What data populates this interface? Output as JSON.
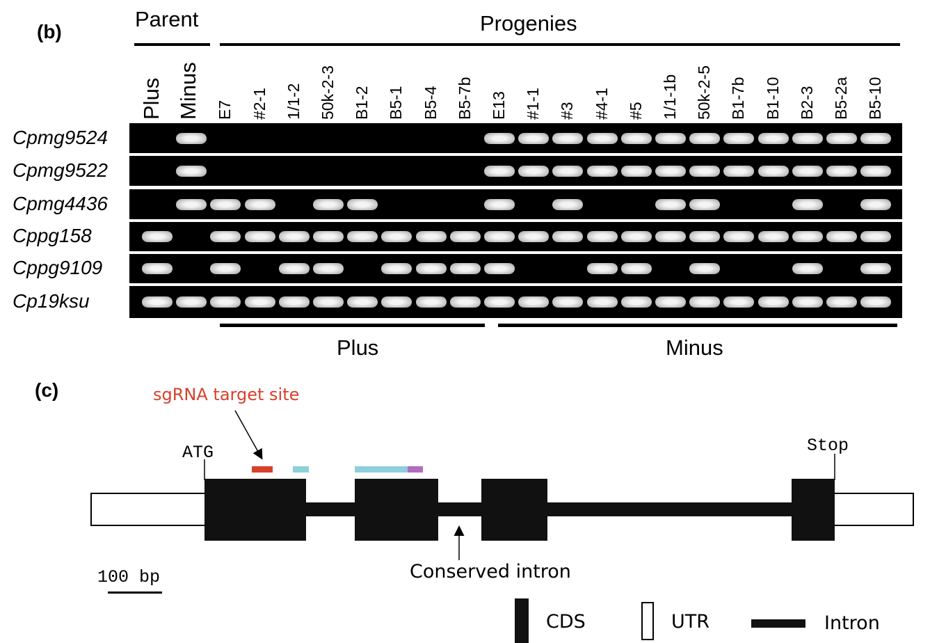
{
  "panel_b": {
    "label": "(b)",
    "parent_header": "Parent",
    "progenies_header": "Progenies",
    "lanes": [
      "Plus",
      "Minus",
      "E7",
      "#2-1",
      "1/1-2",
      "50k-2-3",
      "B1-2",
      "B5-1",
      "B5-4",
      "B5-7b",
      "E13",
      "#1-1",
      "#3",
      "#4-1",
      "#5",
      "1/1-1b",
      "50k-2-5",
      "B1-7b",
      "B1-10",
      "B2-3",
      "B5-2a",
      "B5-10"
    ],
    "rows": [
      {
        "gene": "Cpmg9524",
        "bands": [
          0,
          1,
          0,
          0,
          0,
          0,
          0,
          0,
          0,
          0,
          1,
          1,
          1,
          1,
          1,
          1,
          1,
          1,
          1,
          1,
          1,
          1
        ]
      },
      {
        "gene": "Cpmg9522",
        "bands": [
          0,
          1,
          0,
          0,
          0,
          0,
          0,
          0,
          0,
          0,
          1,
          1,
          1,
          1,
          1,
          1,
          1,
          1,
          1,
          1,
          1,
          1
        ]
      },
      {
        "gene": "Cpmg4436",
        "bands": [
          0,
          1,
          1,
          1,
          0,
          1,
          1,
          0,
          0,
          0,
          1,
          0,
          1,
          0,
          0,
          1,
          1,
          0,
          0,
          1,
          0,
          1
        ]
      },
      {
        "gene": "Cppg158",
        "bands": [
          1,
          0,
          1,
          1,
          1,
          1,
          1,
          1,
          1,
          1,
          1,
          1,
          1,
          1,
          1,
          1,
          1,
          1,
          1,
          1,
          1,
          1
        ]
      },
      {
        "gene": "Cppg9109",
        "bands": [
          1,
          0,
          1,
          0,
          1,
          1,
          0,
          1,
          1,
          1,
          1,
          0,
          0,
          1,
          1,
          0,
          1,
          0,
          0,
          1,
          0,
          1
        ]
      },
      {
        "gene": "Cp19ksu",
        "bands": [
          1,
          1,
          1,
          1,
          1,
          1,
          1,
          1,
          1,
          1,
          1,
          1,
          1,
          1,
          1,
          1,
          1,
          1,
          1,
          1,
          1,
          1
        ]
      }
    ],
    "group_plus": "Plus",
    "group_minus": "Minus"
  },
  "panel_c": {
    "label": "(c)",
    "sgrna_label": "sgRNA target site",
    "sgrna_color": "#d9402b",
    "domain_colors": [
      "#8ecfdc",
      "#b26cbf"
    ],
    "start_label": "ATG",
    "stop_label": "Stop",
    "conserved_label": "Conserved intron",
    "scale_label": "100 bp",
    "legend": {
      "cds": "CDS",
      "utr": "UTR",
      "intron": "Intron"
    }
  }
}
